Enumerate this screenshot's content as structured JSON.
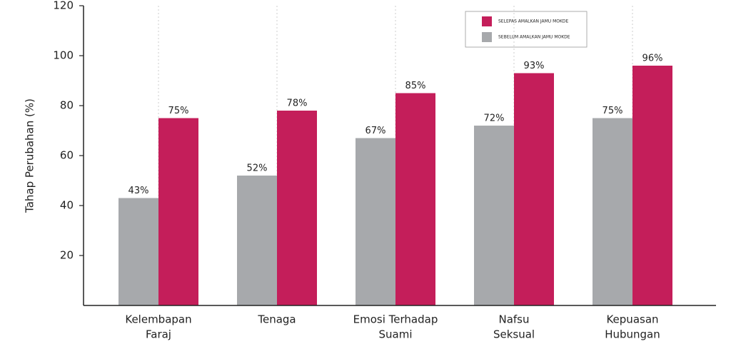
{
  "chart_data": {
    "type": "bar",
    "y_label": "Tahap Perubahan (%)",
    "categories": [
      [
        "Kelembapan",
        "Faraj"
      ],
      [
        "Tenaga"
      ],
      [
        "Emosi Terhadap",
        "Suami"
      ],
      [
        "Nafsu",
        "Seksual"
      ],
      [
        "Kepuasan",
        "Hubungan"
      ]
    ],
    "series": [
      {
        "name": "SELEPAS AMALKAN JAMU MOKDE",
        "color": "#c41e5a",
        "values": [
          75,
          78,
          85,
          93,
          96
        ],
        "value_labels": [
          "75%",
          "78%",
          "85%",
          "93%",
          "96%"
        ]
      },
      {
        "name": "SEBELUM AMALKAN JAMU MOKDE",
        "color": "#a7a9ac",
        "values": [
          43,
          52,
          67,
          72,
          75
        ],
        "value_labels": [
          "43%",
          "52%",
          "67%",
          "72%",
          "75%"
        ]
      }
    ],
    "ylim": [
      0,
      120
    ],
    "yticks": [
      20,
      40,
      60,
      80,
      100,
      120
    ],
    "grid": true
  }
}
